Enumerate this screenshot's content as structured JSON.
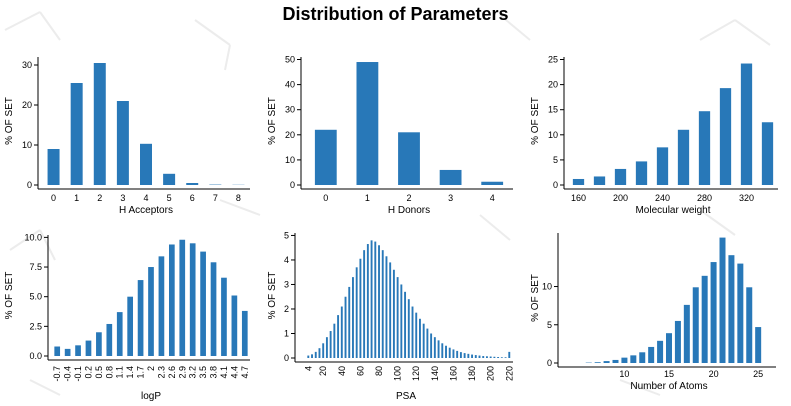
{
  "title": "Distribution of Parameters",
  "bar_color": "#2878b8",
  "ylabel": "% OF SET",
  "chart_data": [
    {
      "type": "bar",
      "xlabel": "H Acceptors",
      "ylabel": "% OF SET",
      "categories": [
        "0",
        "1",
        "2",
        "3",
        "4",
        "5",
        "6",
        "7",
        "8"
      ],
      "values": [
        9,
        25.5,
        30.5,
        21,
        10.3,
        2.8,
        0.5,
        0.1,
        0.05
      ],
      "ylim": [
        0,
        32
      ],
      "yticks": [
        0,
        10,
        20,
        30
      ],
      "xtick_labels": [
        "0",
        "1",
        "2",
        "3",
        "4",
        "5",
        "6",
        "7",
        "8"
      ]
    },
    {
      "type": "bar",
      "xlabel": "H Donors",
      "ylabel": "% OF SET",
      "categories": [
        "0",
        "1",
        "2",
        "3",
        "4"
      ],
      "values": [
        22,
        49,
        21,
        6,
        1.3
      ],
      "ylim": [
        0,
        51
      ],
      "yticks": [
        0,
        10,
        20,
        30,
        40,
        50
      ],
      "xtick_labels": [
        "0",
        "1",
        "2",
        "3",
        "4"
      ]
    },
    {
      "type": "bar",
      "xlabel": "Molecular weight",
      "ylabel": "% OF SET",
      "categories": [
        "160",
        "180",
        "200",
        "220",
        "240",
        "260",
        "280",
        "300",
        "320",
        "340"
      ],
      "values": [
        1.2,
        1.7,
        3.2,
        4.7,
        7.5,
        11,
        14.7,
        19.3,
        24.2,
        12.5
      ],
      "ylim": [
        0,
        25.5
      ],
      "yticks": [
        0,
        5,
        10,
        15,
        20,
        25
      ],
      "xtick_labels": [
        "160",
        "200",
        "240",
        "280",
        "320"
      ]
    },
    {
      "type": "bar",
      "xlabel": "logP",
      "ylabel": "% OF SET",
      "categories": [
        "-0.7",
        "-0.4",
        "-0.1",
        "0.2",
        "0.5",
        "0.8",
        "1.1",
        "1.4",
        "1.7",
        "2",
        "2.3",
        "2.6",
        "2.9",
        "3.2",
        "3.5",
        "3.8",
        "4.1",
        "4.4",
        "4.7"
      ],
      "values": [
        0.8,
        0.6,
        0.9,
        1.3,
        2,
        2.7,
        3.7,
        5,
        6.4,
        7.5,
        8.4,
        9.4,
        9.8,
        9.5,
        8.8,
        7.9,
        6.6,
        5.1,
        3.8
      ],
      "ylim": [
        0,
        10.2
      ],
      "yticks": [
        0,
        2.5,
        5,
        7.5,
        10
      ],
      "ytick_labels": [
        "0.0",
        "2.5",
        "5.0",
        "7.5",
        "10.0"
      ],
      "xtick_labels": [
        "-0.7",
        "-0.4",
        "-0.1",
        "0.2",
        "0.5",
        "0.8",
        "1.1",
        "1.4",
        "1.7",
        "2",
        "2.3",
        "2.6",
        "2.9",
        "3.2",
        "3.5",
        "3.8",
        "4.1",
        "4.4",
        "4.7"
      ]
    },
    {
      "type": "bar",
      "xlabel": "PSA",
      "ylabel": "% OF SET",
      "x": [
        4,
        8,
        12,
        16,
        20,
        24,
        28,
        32,
        36,
        40,
        44,
        48,
        52,
        56,
        60,
        64,
        68,
        72,
        76,
        80,
        84,
        88,
        92,
        96,
        100,
        104,
        108,
        112,
        116,
        120,
        124,
        128,
        132,
        136,
        140,
        144,
        148,
        152,
        156,
        160,
        164,
        168,
        172,
        176,
        180,
        184,
        188,
        192,
        196,
        200,
        204,
        208,
        212,
        216,
        220
      ],
      "values": [
        0.1,
        0.15,
        0.25,
        0.4,
        0.6,
        0.85,
        1.1,
        1.4,
        1.75,
        2.1,
        2.5,
        2.9,
        3.3,
        3.7,
        4.05,
        4.4,
        4.65,
        4.8,
        4.75,
        4.6,
        4.4,
        4.15,
        3.9,
        3.6,
        3.3,
        3.0,
        2.7,
        2.4,
        2.1,
        1.85,
        1.6,
        1.4,
        1.2,
        1.0,
        0.85,
        0.72,
        0.6,
        0.5,
        0.42,
        0.35,
        0.29,
        0.24,
        0.2,
        0.17,
        0.14,
        0.12,
        0.1,
        0.08,
        0.07,
        0.06,
        0.05,
        0.04,
        0.03,
        0.03,
        0.25
      ],
      "ylim": [
        0,
        5.1
      ],
      "yticks": [
        0,
        1,
        2,
        3,
        4,
        5
      ],
      "xtick_labels": [
        "4",
        "20",
        "40",
        "60",
        "80",
        "100",
        "120",
        "140",
        "160",
        "180",
        "200",
        "220"
      ]
    },
    {
      "type": "bar",
      "xlabel": "Number of Atoms",
      "ylabel": "% OF SET",
      "x": [
        6,
        7,
        8,
        9,
        10,
        11,
        12,
        13,
        14,
        15,
        16,
        17,
        18,
        19,
        20,
        21,
        22,
        23,
        24,
        25
      ],
      "values": [
        0.05,
        0.1,
        0.25,
        0.4,
        0.7,
        1.0,
        1.4,
        2.1,
        2.9,
        3.9,
        5.5,
        7.6,
        9.9,
        11.4,
        13.2,
        16.4,
        14.1,
        13,
        9.9,
        4.7
      ],
      "ylim": [
        0,
        17
      ],
      "yticks": [
        0,
        5,
        10
      ],
      "xtick_labels": [
        "10",
        "15",
        "20",
        "25"
      ]
    }
  ]
}
